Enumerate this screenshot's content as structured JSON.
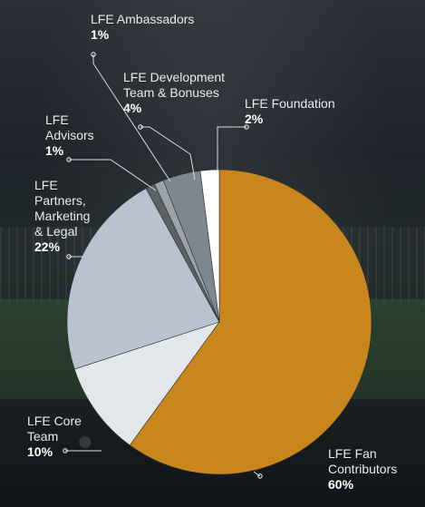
{
  "chart_data": {
    "type": "pie",
    "slices": [
      {
        "label_lines": [
          "LFE Fan",
          "Contributors"
        ],
        "value": 60,
        "value_label": "60%",
        "color": "#c9861c"
      },
      {
        "label_lines": [
          "LFE Core",
          "Team"
        ],
        "value": 10,
        "value_label": "10%",
        "color": "#e4e7ea"
      },
      {
        "label_lines": [
          "LFE",
          "Partners,",
          "Marketing",
          "& Legal"
        ],
        "value": 22,
        "value_label": "22%",
        "color": "#b8c3cf"
      },
      {
        "label_lines": [
          "LFE",
          "Advisors"
        ],
        "value": 1,
        "value_label": "1%",
        "color": "#5c6166"
      },
      {
        "label_lines": [
          "LFE Ambassadors"
        ],
        "value": 1,
        "value_label": "1%",
        "color": "#9da3a8"
      },
      {
        "label_lines": [
          "LFE Development",
          "Team & Bonuses"
        ],
        "value": 4,
        "value_label": "4%",
        "color": "#7d8790"
      },
      {
        "label_lines": [
          "LFE Foundation"
        ],
        "value": 2,
        "value_label": "2%",
        "color": "#ffffff"
      }
    ]
  }
}
